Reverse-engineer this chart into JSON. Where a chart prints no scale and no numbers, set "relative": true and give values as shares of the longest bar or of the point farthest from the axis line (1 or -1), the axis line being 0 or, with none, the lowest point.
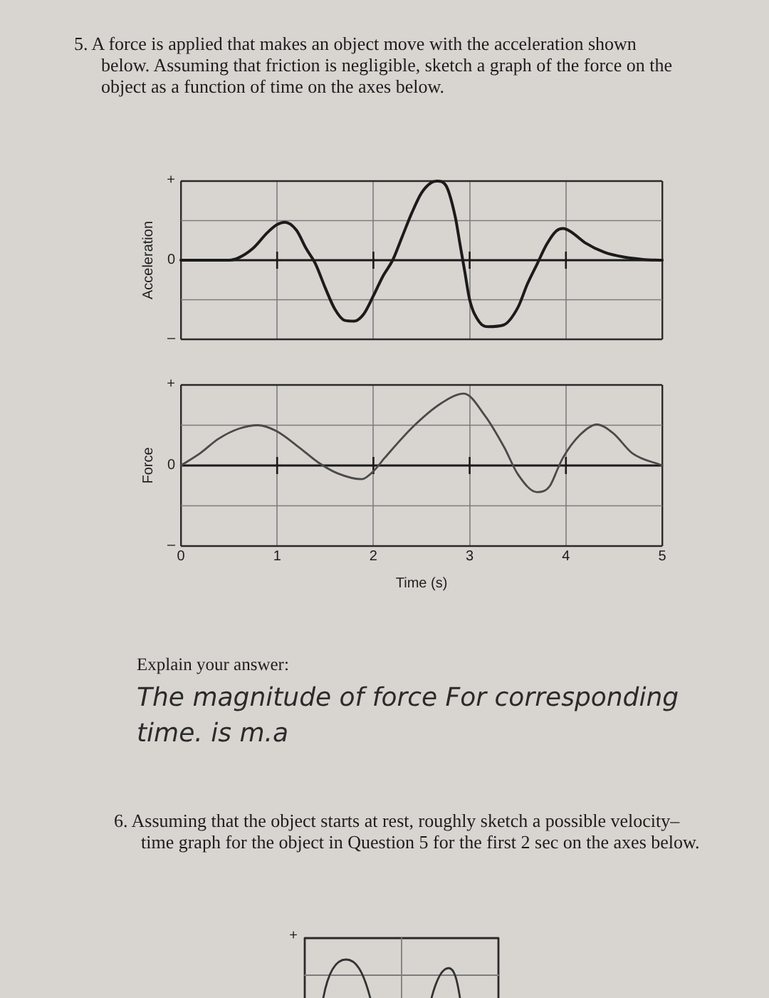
{
  "chart_data": [
    {
      "type": "line",
      "title": "5. A force is applied that makes an object move with the acceleration shown below. Assuming that friction is negligible, sketch a graph of the force on the object as a function of time on the axes below.",
      "ylabel": "Acceleration",
      "x": [
        0,
        0.5,
        0.6,
        0.75,
        0.9,
        1.0,
        1.08,
        1.2,
        1.3,
        1.4,
        1.5,
        1.6,
        1.7,
        1.8,
        1.9,
        2.0,
        2.1,
        2.2,
        2.3,
        2.4,
        2.5,
        2.6,
        2.66,
        2.75,
        2.85,
        2.9,
        2.95,
        3.0,
        3.1,
        3.2,
        3.35,
        3.5,
        3.6,
        3.7,
        3.8,
        3.9,
        3.97,
        4.05,
        4.2,
        4.4,
        4.6,
        4.8,
        5.0
      ],
      "series": [
        {
          "color": "#1b1b1b",
          "values": [
            0,
            0,
            0.03,
            0.15,
            0.35,
            0.45,
            0.48,
            0.38,
            0.15,
            -0.05,
            -0.35,
            -0.62,
            -0.76,
            -0.77,
            -0.68,
            -0.45,
            -0.2,
            0.0,
            0.3,
            0.6,
            0.85,
            0.98,
            1.0,
            0.95,
            0.55,
            0.2,
            -0.15,
            -0.5,
            -0.78,
            -0.84,
            -0.82,
            -0.6,
            -0.3,
            -0.05,
            0.2,
            0.37,
            0.4,
            0.36,
            0.22,
            0.1,
            0.04,
            0.01,
            0
          ]
        }
      ],
      "xlim": [
        0,
        5
      ],
      "xticks": [
        0,
        1,
        2,
        3,
        4,
        5
      ],
      "relative": true,
      "tick_labels": false,
      "grid": "x",
      "annotations": [
        "+",
        "0",
        "–"
      ]
    },
    {
      "type": "line",
      "xlabel": "Time (s)",
      "ylabel": "Force",
      "x": [
        0,
        0.2,
        0.39,
        0.6,
        0.8,
        0.99,
        1.23,
        1.43,
        1.63,
        1.88,
        2.0,
        2.12,
        2.42,
        2.71,
        2.94,
        3.16,
        3.36,
        3.5,
        3.7,
        3.83,
        3.92,
        3.97,
        4.15,
        4.32,
        4.49,
        4.69,
        5.0
      ],
      "series": [
        {
          "color": "#4a4a4a",
          "values": [
            0,
            0.17,
            0.37,
            0.51,
            0.56,
            0.48,
            0.25,
            0.04,
            -0.11,
            -0.19,
            -0.08,
            0.11,
            0.55,
            0.87,
            1,
            0.69,
            0.25,
            -0.12,
            -0.37,
            -0.29,
            -0.03,
            0.11,
            0.43,
            0.57,
            0.45,
            0.17,
            0
          ]
        }
      ],
      "xlim": [
        0,
        5
      ],
      "xticks": [
        0,
        1,
        2,
        3,
        4,
        5
      ],
      "relative": true,
      "tick_labels": "x",
      "grid": "x",
      "annotations": [
        "+",
        "0",
        "–",
        "Explain your answer:",
        "The magnitude of force For corresponding time. is m.a"
      ]
    },
    {
      "type": "other",
      "title": "6. Assuming that the object starts at rest, roughly sketch a possible velocity–time graph for the object in Question 5 for the first 2 sec on the axes below.",
      "annotations": [
        "+"
      ]
    }
  ]
}
